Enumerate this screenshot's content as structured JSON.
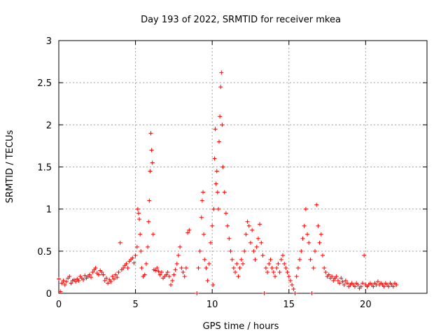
{
  "chart_data": {
    "type": "scatter",
    "title": "Day 193 of 2022, SRMTID for receiver mkea",
    "xlabel": "GPS time / hours",
    "ylabel": "SRMTID / TECUs",
    "xlim": [
      0,
      24
    ],
    "ylim": [
      0,
      3
    ],
    "x_ticks": [
      "0",
      "5",
      "10",
      "15",
      "20"
    ],
    "y_ticks": [
      "0",
      "0.5",
      "1",
      "1.5",
      "2",
      "2.5",
      "3"
    ],
    "grid": true,
    "marker": "+",
    "colors": {
      "points": "#ff0000"
    },
    "series": [
      {
        "points": [
          [
            0.0,
            0.17
          ],
          [
            0.1,
            0.02
          ],
          [
            0.2,
            0.12
          ],
          [
            0.3,
            0.15
          ],
          [
            0.4,
            0.1
          ],
          [
            0.5,
            0.14
          ],
          [
            0.6,
            0.18
          ],
          [
            0.7,
            0.2
          ],
          [
            0.8,
            0.12
          ],
          [
            0.9,
            0.15
          ],
          [
            1.0,
            0.16
          ],
          [
            1.1,
            0.14
          ],
          [
            1.2,
            0.17
          ],
          [
            1.3,
            0.15
          ],
          [
            1.4,
            0.2
          ],
          [
            1.5,
            0.18
          ],
          [
            1.6,
            0.16
          ],
          [
            1.7,
            0.21
          ],
          [
            1.8,
            0.18
          ],
          [
            1.9,
            0.2
          ],
          [
            2.0,
            0.22
          ],
          [
            2.1,
            0.19
          ],
          [
            2.2,
            0.25
          ],
          [
            2.3,
            0.28
          ],
          [
            2.4,
            0.3
          ],
          [
            2.5,
            0.24
          ],
          [
            2.6,
            0.22
          ],
          [
            2.7,
            0.27
          ],
          [
            2.8,
            0.25
          ],
          [
            2.9,
            0.22
          ],
          [
            3.0,
            0.15
          ],
          [
            3.1,
            0.18
          ],
          [
            3.2,
            0.12
          ],
          [
            3.3,
            0.16
          ],
          [
            3.4,
            0.14
          ],
          [
            3.5,
            0.2
          ],
          [
            3.6,
            0.17
          ],
          [
            3.7,
            0.22
          ],
          [
            3.8,
            0.19
          ],
          [
            3.9,
            0.25
          ],
          [
            4.0,
            0.6
          ],
          [
            4.1,
            0.28
          ],
          [
            4.2,
            0.3
          ],
          [
            4.3,
            0.33
          ],
          [
            4.4,
            0.35
          ],
          [
            4.5,
            0.3
          ],
          [
            4.6,
            0.38
          ],
          [
            4.7,
            0.4
          ],
          [
            4.8,
            0.42
          ],
          [
            4.9,
            0.36
          ],
          [
            5.0,
            0.45
          ],
          [
            5.1,
            0.55
          ],
          [
            5.15,
            1.0
          ],
          [
            5.2,
            0.95
          ],
          [
            5.25,
            0.88
          ],
          [
            5.3,
            0.7
          ],
          [
            5.35,
            0.5
          ],
          [
            5.4,
            0.3
          ],
          [
            5.5,
            0.2
          ],
          [
            5.6,
            0.22
          ],
          [
            5.7,
            0.35
          ],
          [
            5.8,
            0.55
          ],
          [
            5.85,
            0.85
          ],
          [
            5.9,
            1.1
          ],
          [
            5.95,
            1.45
          ],
          [
            6.0,
            1.9
          ],
          [
            6.05,
            1.7
          ],
          [
            6.1,
            1.55
          ],
          [
            6.15,
            0.7
          ],
          [
            6.2,
            0.28
          ],
          [
            6.3,
            0.27
          ],
          [
            6.4,
            0.3
          ],
          [
            6.5,
            0.26
          ],
          [
            6.6,
            0.22
          ],
          [
            6.7,
            0.25
          ],
          [
            6.8,
            0.18
          ],
          [
            6.9,
            0.2
          ],
          [
            7.0,
            0.22
          ],
          [
            7.1,
            0.25
          ],
          [
            7.2,
            0.2
          ],
          [
            7.3,
            0.1
          ],
          [
            7.4,
            0.15
          ],
          [
            7.5,
            0.22
          ],
          [
            7.6,
            0.28
          ],
          [
            7.7,
            0.35
          ],
          [
            7.8,
            0.45
          ],
          [
            7.9,
            0.55
          ],
          [
            8.0,
            0.3
          ],
          [
            8.1,
            0.25
          ],
          [
            8.2,
            0.2
          ],
          [
            8.3,
            0.3
          ],
          [
            8.4,
            0.72
          ],
          [
            8.5,
            0.75
          ],
          [
            9.0,
            0.0
          ],
          [
            9.1,
            0.3
          ],
          [
            9.2,
            0.5
          ],
          [
            9.3,
            0.9
          ],
          [
            9.35,
            1.1
          ],
          [
            9.4,
            1.2
          ],
          [
            9.45,
            0.7
          ],
          [
            9.5,
            0.4
          ],
          [
            9.6,
            0.3
          ],
          [
            9.7,
            0.15
          ],
          [
            9.8,
            0.35
          ],
          [
            9.9,
            0.6
          ],
          [
            10.0,
            0.8
          ],
          [
            10.05,
            0.1
          ],
          [
            10.1,
            1.0
          ],
          [
            10.15,
            1.6
          ],
          [
            10.2,
            1.95
          ],
          [
            10.25,
            1.3
          ],
          [
            10.3,
            1.45
          ],
          [
            10.35,
            1.2
          ],
          [
            10.4,
            1.0
          ],
          [
            10.45,
            1.8
          ],
          [
            10.5,
            2.1
          ],
          [
            10.55,
            2.45
          ],
          [
            10.6,
            2.62
          ],
          [
            10.65,
            2.0
          ],
          [
            10.7,
            1.5
          ],
          [
            10.8,
            1.2
          ],
          [
            10.9,
            0.95
          ],
          [
            11.0,
            0.8
          ],
          [
            11.1,
            0.65
          ],
          [
            11.2,
            0.5
          ],
          [
            11.3,
            0.4
          ],
          [
            11.4,
            0.3
          ],
          [
            11.5,
            0.25
          ],
          [
            11.6,
            0.35
          ],
          [
            11.7,
            0.2
          ],
          [
            11.8,
            0.3
          ],
          [
            11.9,
            0.4
          ],
          [
            12.0,
            0.35
          ],
          [
            12.1,
            0.5
          ],
          [
            12.2,
            0.7
          ],
          [
            12.3,
            0.85
          ],
          [
            12.4,
            0.8
          ],
          [
            12.5,
            0.6
          ],
          [
            12.6,
            0.75
          ],
          [
            12.7,
            0.5
          ],
          [
            12.8,
            0.4
          ],
          [
            12.9,
            0.55
          ],
          [
            13.0,
            0.65
          ],
          [
            13.1,
            0.82
          ],
          [
            13.2,
            0.6
          ],
          [
            13.3,
            0.45
          ],
          [
            13.4,
            0.0
          ],
          [
            13.5,
            0.3
          ],
          [
            13.6,
            0.25
          ],
          [
            13.7,
            0.35
          ],
          [
            13.8,
            0.4
          ],
          [
            13.9,
            0.3
          ],
          [
            14.0,
            0.25
          ],
          [
            14.1,
            0.2
          ],
          [
            14.2,
            0.3
          ],
          [
            14.3,
            0.35
          ],
          [
            14.4,
            0.25
          ],
          [
            14.5,
            0.4
          ],
          [
            14.6,
            0.45
          ],
          [
            14.7,
            0.35
          ],
          [
            14.8,
            0.3
          ],
          [
            14.9,
            0.25
          ],
          [
            15.0,
            0.2
          ],
          [
            15.1,
            0.15
          ],
          [
            15.2,
            0.1
          ],
          [
            15.3,
            0.05
          ],
          [
            15.4,
            0.0
          ],
          [
            15.5,
            0.2
          ],
          [
            15.6,
            0.3
          ],
          [
            15.7,
            0.4
          ],
          [
            15.8,
            0.5
          ],
          [
            15.9,
            0.65
          ],
          [
            16.0,
            0.8
          ],
          [
            16.1,
            1.0
          ],
          [
            16.2,
            0.7
          ],
          [
            16.3,
            0.6
          ],
          [
            16.4,
            0.4
          ],
          [
            16.5,
            0.0
          ],
          [
            16.6,
            0.3
          ],
          [
            16.7,
            0.5
          ],
          [
            16.8,
            1.05
          ],
          [
            16.9,
            0.8
          ],
          [
            17.0,
            0.6
          ],
          [
            17.1,
            0.7
          ],
          [
            17.2,
            0.45
          ],
          [
            17.3,
            0.3
          ],
          [
            17.4,
            0.25
          ],
          [
            17.5,
            0.2
          ],
          [
            17.6,
            0.22
          ],
          [
            17.7,
            0.18
          ],
          [
            17.8,
            0.2
          ],
          [
            17.9,
            0.15
          ],
          [
            18.0,
            0.18
          ],
          [
            18.1,
            0.2
          ],
          [
            18.2,
            0.15
          ],
          [
            18.3,
            0.12
          ],
          [
            18.4,
            0.18
          ],
          [
            18.5,
            0.14
          ],
          [
            18.6,
            0.1
          ],
          [
            18.7,
            0.15
          ],
          [
            18.8,
            0.12
          ],
          [
            18.9,
            0.08
          ],
          [
            19.0,
            0.1
          ],
          [
            19.1,
            0.12
          ],
          [
            19.2,
            0.1
          ],
          [
            19.3,
            0.08
          ],
          [
            19.4,
            0.12
          ],
          [
            19.5,
            0.1
          ],
          [
            19.6,
            0.06
          ],
          [
            19.7,
            0.08
          ],
          [
            19.8,
            0.12
          ],
          [
            19.9,
            0.45
          ],
          [
            20.0,
            0.1
          ],
          [
            20.1,
            0.08
          ],
          [
            20.2,
            0.1
          ],
          [
            20.3,
            0.12
          ],
          [
            20.4,
            0.1
          ],
          [
            20.5,
            0.08
          ],
          [
            20.6,
            0.12
          ],
          [
            20.7,
            0.1
          ],
          [
            20.8,
            0.14
          ],
          [
            20.9,
            0.1
          ],
          [
            21.0,
            0.12
          ],
          [
            21.1,
            0.1
          ],
          [
            21.2,
            0.08
          ],
          [
            21.3,
            0.12
          ],
          [
            21.4,
            0.1
          ],
          [
            21.5,
            0.08
          ],
          [
            21.6,
            0.12
          ],
          [
            21.7,
            0.1
          ],
          [
            21.8,
            0.08
          ],
          [
            21.9,
            0.12
          ],
          [
            22.0,
            0.1
          ]
        ]
      }
    ]
  }
}
